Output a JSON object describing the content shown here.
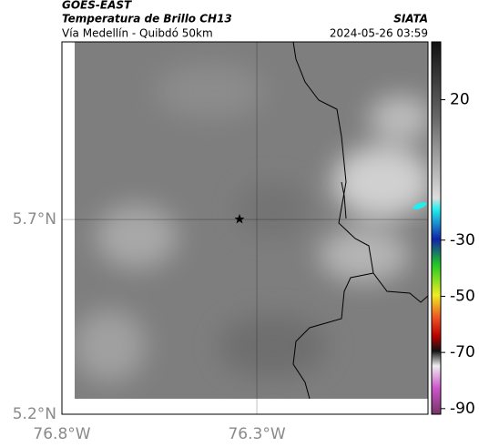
{
  "header": {
    "satellite": "GOES-EAST",
    "product": "Temperatura de Brillo CH13",
    "source": "SIATA",
    "route": "Vía Medellín - Quibdó 50km",
    "timestamp": "2024-05-26 03:59"
  },
  "map": {
    "lat_range": [
      5.2,
      6.156
    ],
    "lon_range": [
      -76.8,
      -75.861
    ],
    "lat_ticks": [
      {
        "value": 5.2,
        "label": "5.2°N"
      },
      {
        "value": 5.7,
        "label": "5.7°N"
      }
    ],
    "lon_ticks": [
      {
        "value": -76.8,
        "label": "76.8°W"
      },
      {
        "value": -76.3,
        "label": "76.3°W"
      }
    ]
  },
  "colorbar": {
    "range": [
      -92,
      40.6
    ],
    "ticks": [
      20,
      -30,
      -50,
      -70,
      -90
    ]
  }
}
